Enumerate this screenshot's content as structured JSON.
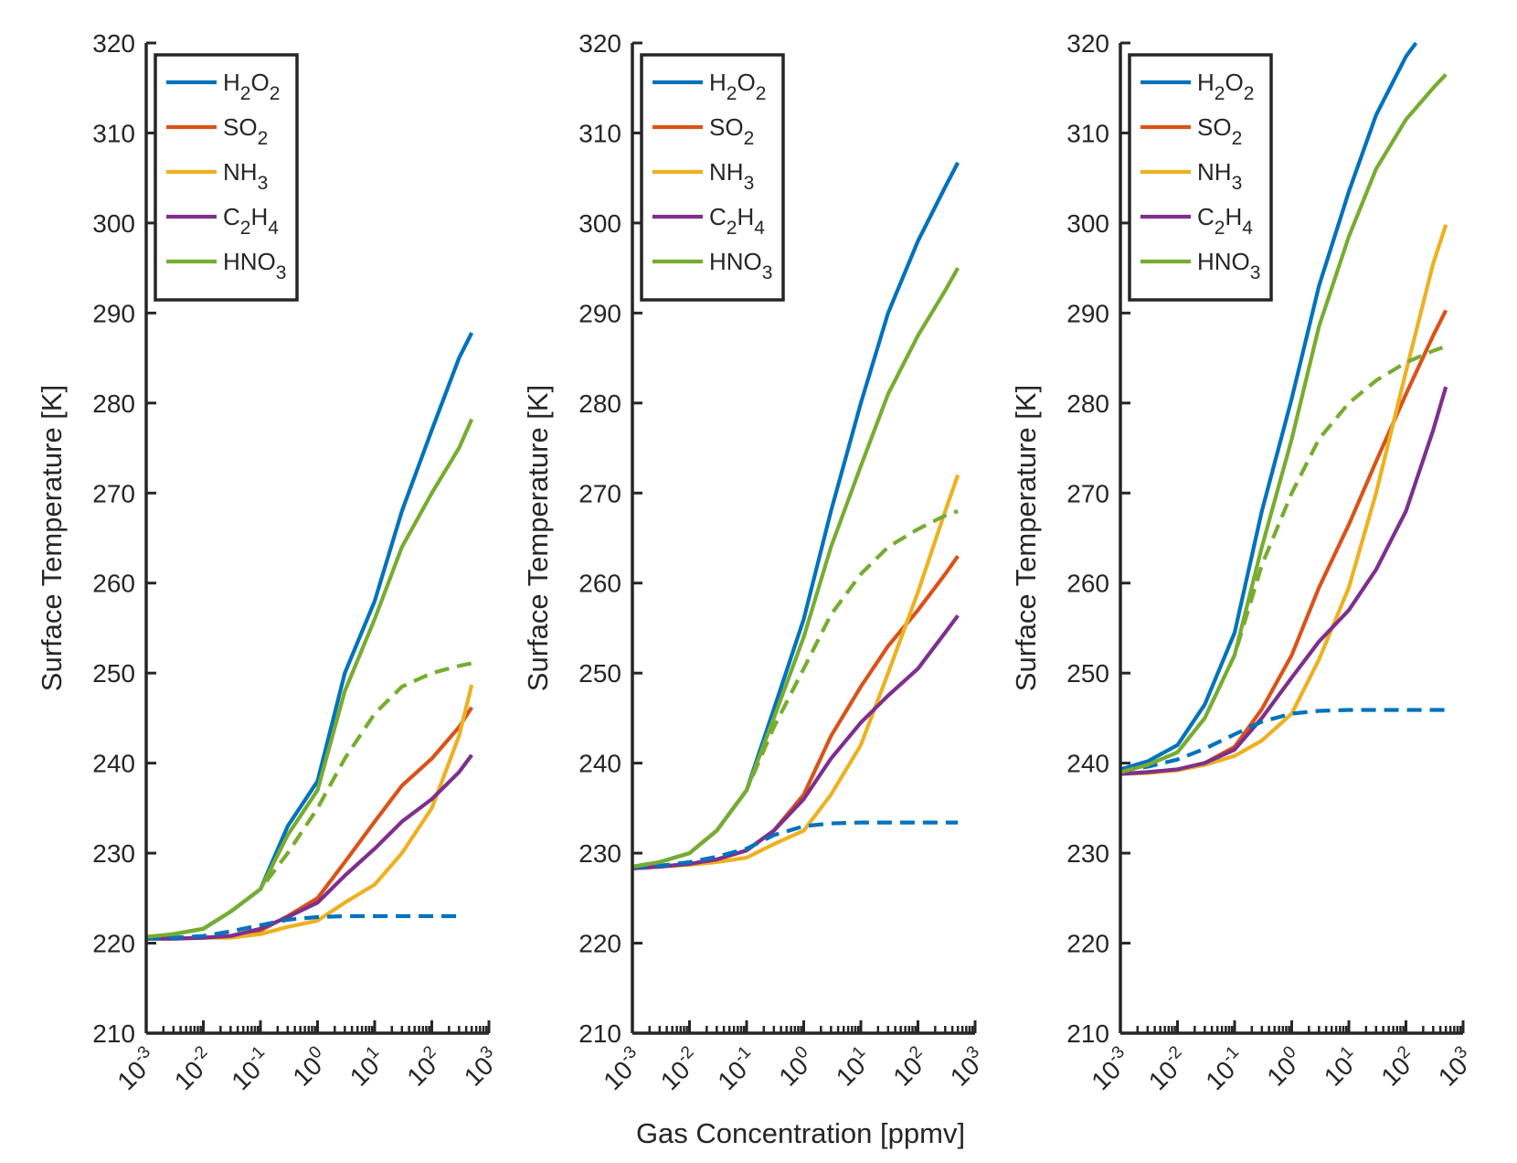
{
  "figure": {
    "xlabel": "Gas Concentration [ppmv]",
    "ylabel": "Surface Temperature [K]"
  },
  "axes": {
    "x_ticks": [
      {
        "base": "10",
        "exp": "-3"
      },
      {
        "base": "10",
        "exp": "-2"
      },
      {
        "base": "10",
        "exp": "-1"
      },
      {
        "base": "10",
        "exp": "0"
      },
      {
        "base": "10",
        "exp": "1"
      },
      {
        "base": "10",
        "exp": "2"
      },
      {
        "base": "10",
        "exp": "3"
      }
    ],
    "y_ticks": [
      "210",
      "220",
      "230",
      "240",
      "250",
      "260",
      "270",
      "280",
      "290",
      "300",
      "310",
      "320"
    ]
  },
  "legend": [
    {
      "parts": [
        [
          "H",
          ""
        ],
        [
          "2",
          "sub"
        ],
        [
          "O",
          ""
        ],
        [
          "2",
          "sub"
        ]
      ],
      "color": "#0072BD"
    },
    {
      "parts": [
        [
          "SO",
          ""
        ],
        [
          "2",
          "sub"
        ]
      ],
      "color": "#D95319"
    },
    {
      "parts": [
        [
          "NH",
          ""
        ],
        [
          "3",
          "sub"
        ]
      ],
      "color": "#EDB120"
    },
    {
      "parts": [
        [
          "C",
          ""
        ],
        [
          "2",
          "sub"
        ],
        [
          "H",
          ""
        ],
        [
          "4",
          "sub"
        ]
      ],
      "color": "#7E2F8E"
    },
    {
      "parts": [
        [
          "HNO",
          ""
        ],
        [
          "3",
          "sub"
        ]
      ],
      "color": "#77AC30"
    }
  ],
  "chart_data": [
    {
      "type": "line",
      "x_scale": "log",
      "xlim": [
        0.001,
        1000
      ],
      "ylim": [
        210,
        320
      ],
      "grid": false,
      "legend_position": "top-left",
      "series": [
        {
          "color": "#0072BD",
          "dash": false,
          "x": [
            0.001,
            0.003,
            0.01,
            0.03,
            0.1,
            0.3,
            1,
            3,
            10,
            30,
            100,
            300,
            500
          ],
          "y": [
            220.6,
            221.0,
            221.6,
            223.5,
            226.0,
            233.0,
            238.0,
            250.0,
            258.0,
            268.0,
            277.0,
            285.0,
            287.8
          ]
        },
        {
          "color": "#D95319",
          "dash": false,
          "x": [
            0.001,
            0.003,
            0.01,
            0.03,
            0.1,
            0.3,
            1,
            3,
            10,
            30,
            100,
            300,
            500
          ],
          "y": [
            220.5,
            220.5,
            220.6,
            220.8,
            221.4,
            223.0,
            225.0,
            229.0,
            233.5,
            237.5,
            240.5,
            244.0,
            246.2
          ]
        },
        {
          "color": "#EDB120",
          "dash": false,
          "x": [
            0.001,
            0.003,
            0.01,
            0.03,
            0.1,
            0.3,
            1,
            3,
            10,
            30,
            100,
            300,
            500
          ],
          "y": [
            220.5,
            220.5,
            220.6,
            220.6,
            221.0,
            221.8,
            222.5,
            224.5,
            226.5,
            230.0,
            235.0,
            243.0,
            248.7
          ]
        },
        {
          "color": "#7E2F8E",
          "dash": false,
          "x": [
            0.001,
            0.003,
            0.01,
            0.03,
            0.1,
            0.3,
            1,
            3,
            10,
            30,
            100,
            300,
            500
          ],
          "y": [
            220.5,
            220.5,
            220.6,
            220.8,
            221.6,
            222.9,
            224.5,
            227.5,
            230.5,
            233.5,
            236.0,
            239.0,
            240.9
          ]
        },
        {
          "color": "#77AC30",
          "dash": false,
          "x": [
            0.001,
            0.003,
            0.01,
            0.03,
            0.1,
            0.3,
            1,
            3,
            10,
            30,
            100,
            300,
            500
          ],
          "y": [
            220.7,
            221.0,
            221.6,
            223.5,
            226.0,
            232.0,
            237.0,
            248.0,
            256.0,
            264.0,
            270.0,
            275.0,
            278.2
          ]
        },
        {
          "color": "#0072BD",
          "dash": true,
          "x": [
            0.001,
            0.003,
            0.01,
            0.03,
            0.1,
            0.3,
            1,
            3,
            10,
            30,
            100,
            300
          ],
          "y": [
            220.5,
            220.6,
            220.8,
            221.3,
            222.0,
            222.6,
            222.9,
            223.0,
            223.0,
            223.0,
            223.0,
            223.0
          ]
        },
        {
          "color": "#77AC30",
          "dash": true,
          "x": [
            0.001,
            0.003,
            0.01,
            0.03,
            0.1,
            0.3,
            1,
            3,
            10,
            30,
            100,
            300,
            500
          ],
          "y": [
            220.7,
            221.0,
            221.6,
            223.5,
            226.0,
            230.0,
            235.0,
            240.5,
            245.5,
            248.5,
            250.0,
            250.8,
            251.1
          ]
        }
      ]
    },
    {
      "type": "line",
      "x_scale": "log",
      "xlim": [
        0.001,
        1000
      ],
      "ylim": [
        210,
        320
      ],
      "grid": false,
      "legend_position": "top-left",
      "series": [
        {
          "color": "#0072BD",
          "dash": false,
          "x": [
            0.001,
            0.003,
            0.01,
            0.03,
            0.1,
            0.3,
            1,
            3,
            10,
            30,
            100,
            300,
            500
          ],
          "y": [
            228.5,
            229.0,
            230.0,
            232.5,
            237.0,
            246.0,
            256.0,
            268.0,
            280.0,
            290.0,
            298.0,
            304.0,
            306.7
          ]
        },
        {
          "color": "#D95319",
          "dash": false,
          "x": [
            0.001,
            0.003,
            0.01,
            0.03,
            0.1,
            0.3,
            1,
            3,
            10,
            30,
            100,
            300,
            500
          ],
          "y": [
            228.3,
            228.5,
            228.8,
            229.3,
            230.3,
            232.5,
            236.5,
            243.0,
            248.5,
            253.0,
            257.0,
            261.0,
            263.0
          ]
        },
        {
          "color": "#EDB120",
          "dash": false,
          "x": [
            0.001,
            0.003,
            0.01,
            0.03,
            0.1,
            0.3,
            1,
            3,
            10,
            30,
            100,
            300,
            500
          ],
          "y": [
            228.3,
            228.5,
            228.7,
            229.0,
            229.5,
            231.0,
            232.5,
            236.5,
            242.0,
            250.0,
            259.0,
            268.0,
            272.0
          ]
        },
        {
          "color": "#7E2F8E",
          "dash": false,
          "x": [
            0.001,
            0.003,
            0.01,
            0.03,
            0.1,
            0.3,
            1,
            3,
            10,
            30,
            100,
            300,
            500
          ],
          "y": [
            228.3,
            228.5,
            228.8,
            229.3,
            230.3,
            232.5,
            236.0,
            240.5,
            244.5,
            247.5,
            250.5,
            254.5,
            256.4
          ]
        },
        {
          "color": "#77AC30",
          "dash": false,
          "x": [
            0.001,
            0.003,
            0.01,
            0.03,
            0.1,
            0.3,
            1,
            3,
            10,
            30,
            100,
            300,
            500
          ],
          "y": [
            228.5,
            229.0,
            230.0,
            232.5,
            237.0,
            245.0,
            254.0,
            264.0,
            273.0,
            281.0,
            287.5,
            292.5,
            295.0
          ]
        },
        {
          "color": "#0072BD",
          "dash": true,
          "x": [
            0.001,
            0.003,
            0.01,
            0.03,
            0.1,
            0.3,
            1,
            3,
            10,
            30,
            100,
            300,
            500
          ],
          "y": [
            228.4,
            228.6,
            229.0,
            229.6,
            230.5,
            232.0,
            233.0,
            233.3,
            233.4,
            233.4,
            233.4,
            233.4,
            233.4
          ]
        },
        {
          "color": "#77AC30",
          "dash": true,
          "x": [
            0.001,
            0.003,
            0.01,
            0.03,
            0.1,
            0.3,
            1,
            3,
            10,
            30,
            100,
            300,
            500
          ],
          "y": [
            228.5,
            229.0,
            230.0,
            232.5,
            237.0,
            244.0,
            250.5,
            256.5,
            261.0,
            264.0,
            266.0,
            267.5,
            268.0
          ]
        }
      ]
    },
    {
      "type": "line",
      "x_scale": "log",
      "xlim": [
        0.001,
        1000
      ],
      "ylim": [
        210,
        320
      ],
      "grid": false,
      "legend_position": "top-left",
      "series": [
        {
          "color": "#0072BD",
          "dash": false,
          "x": [
            0.001,
            0.003,
            0.01,
            0.03,
            0.1,
            0.3,
            1,
            3,
            10,
            30,
            100,
            150
          ],
          "y": [
            239.3,
            240.2,
            242.0,
            246.5,
            254.5,
            268.0,
            280.5,
            293.0,
            303.5,
            312.0,
            318.5,
            320.0
          ]
        },
        {
          "color": "#D95319",
          "dash": false,
          "x": [
            0.001,
            0.003,
            0.01,
            0.03,
            0.1,
            0.3,
            1,
            3,
            10,
            30,
            100,
            300,
            500
          ],
          "y": [
            238.8,
            239.0,
            239.3,
            240.0,
            241.8,
            246.0,
            252.0,
            259.5,
            266.5,
            273.5,
            281.0,
            287.5,
            290.3
          ]
        },
        {
          "color": "#EDB120",
          "dash": false,
          "x": [
            0.001,
            0.003,
            0.01,
            0.03,
            0.1,
            0.3,
            1,
            3,
            10,
            30,
            100,
            300,
            500
          ],
          "y": [
            238.8,
            238.9,
            239.2,
            239.8,
            240.8,
            242.5,
            245.5,
            251.5,
            259.5,
            270.0,
            283.5,
            295.5,
            299.8
          ]
        },
        {
          "color": "#7E2F8E",
          "dash": false,
          "x": [
            0.001,
            0.003,
            0.01,
            0.03,
            0.1,
            0.3,
            1,
            3,
            10,
            30,
            100,
            300,
            500
          ],
          "y": [
            238.8,
            239.0,
            239.3,
            240.0,
            241.5,
            245.0,
            249.5,
            253.5,
            257.0,
            261.5,
            268.0,
            277.0,
            281.8
          ]
        },
        {
          "color": "#77AC30",
          "dash": false,
          "x": [
            0.001,
            0.003,
            0.01,
            0.03,
            0.1,
            0.3,
            1,
            3,
            10,
            30,
            100,
            300,
            500
          ],
          "y": [
            239.0,
            239.8,
            241.2,
            245.0,
            252.0,
            264.0,
            276.0,
            288.5,
            298.5,
            306.0,
            311.5,
            315.0,
            316.5
          ]
        },
        {
          "color": "#0072BD",
          "dash": true,
          "x": [
            0.001,
            0.003,
            0.01,
            0.03,
            0.1,
            0.3,
            1,
            3,
            10,
            30,
            100,
            300,
            500
          ],
          "y": [
            239.2,
            239.6,
            240.4,
            241.6,
            243.2,
            244.6,
            245.5,
            245.8,
            245.9,
            245.9,
            245.9,
            245.9,
            245.9
          ]
        },
        {
          "color": "#77AC30",
          "dash": true,
          "x": [
            0.001,
            0.003,
            0.01,
            0.03,
            0.1,
            0.3,
            1,
            3,
            10,
            30,
            100,
            300,
            500
          ],
          "y": [
            239.0,
            239.8,
            241.2,
            245.0,
            252.0,
            262.0,
            270.0,
            276.0,
            280.0,
            282.5,
            284.5,
            285.8,
            286.3
          ]
        }
      ]
    }
  ]
}
